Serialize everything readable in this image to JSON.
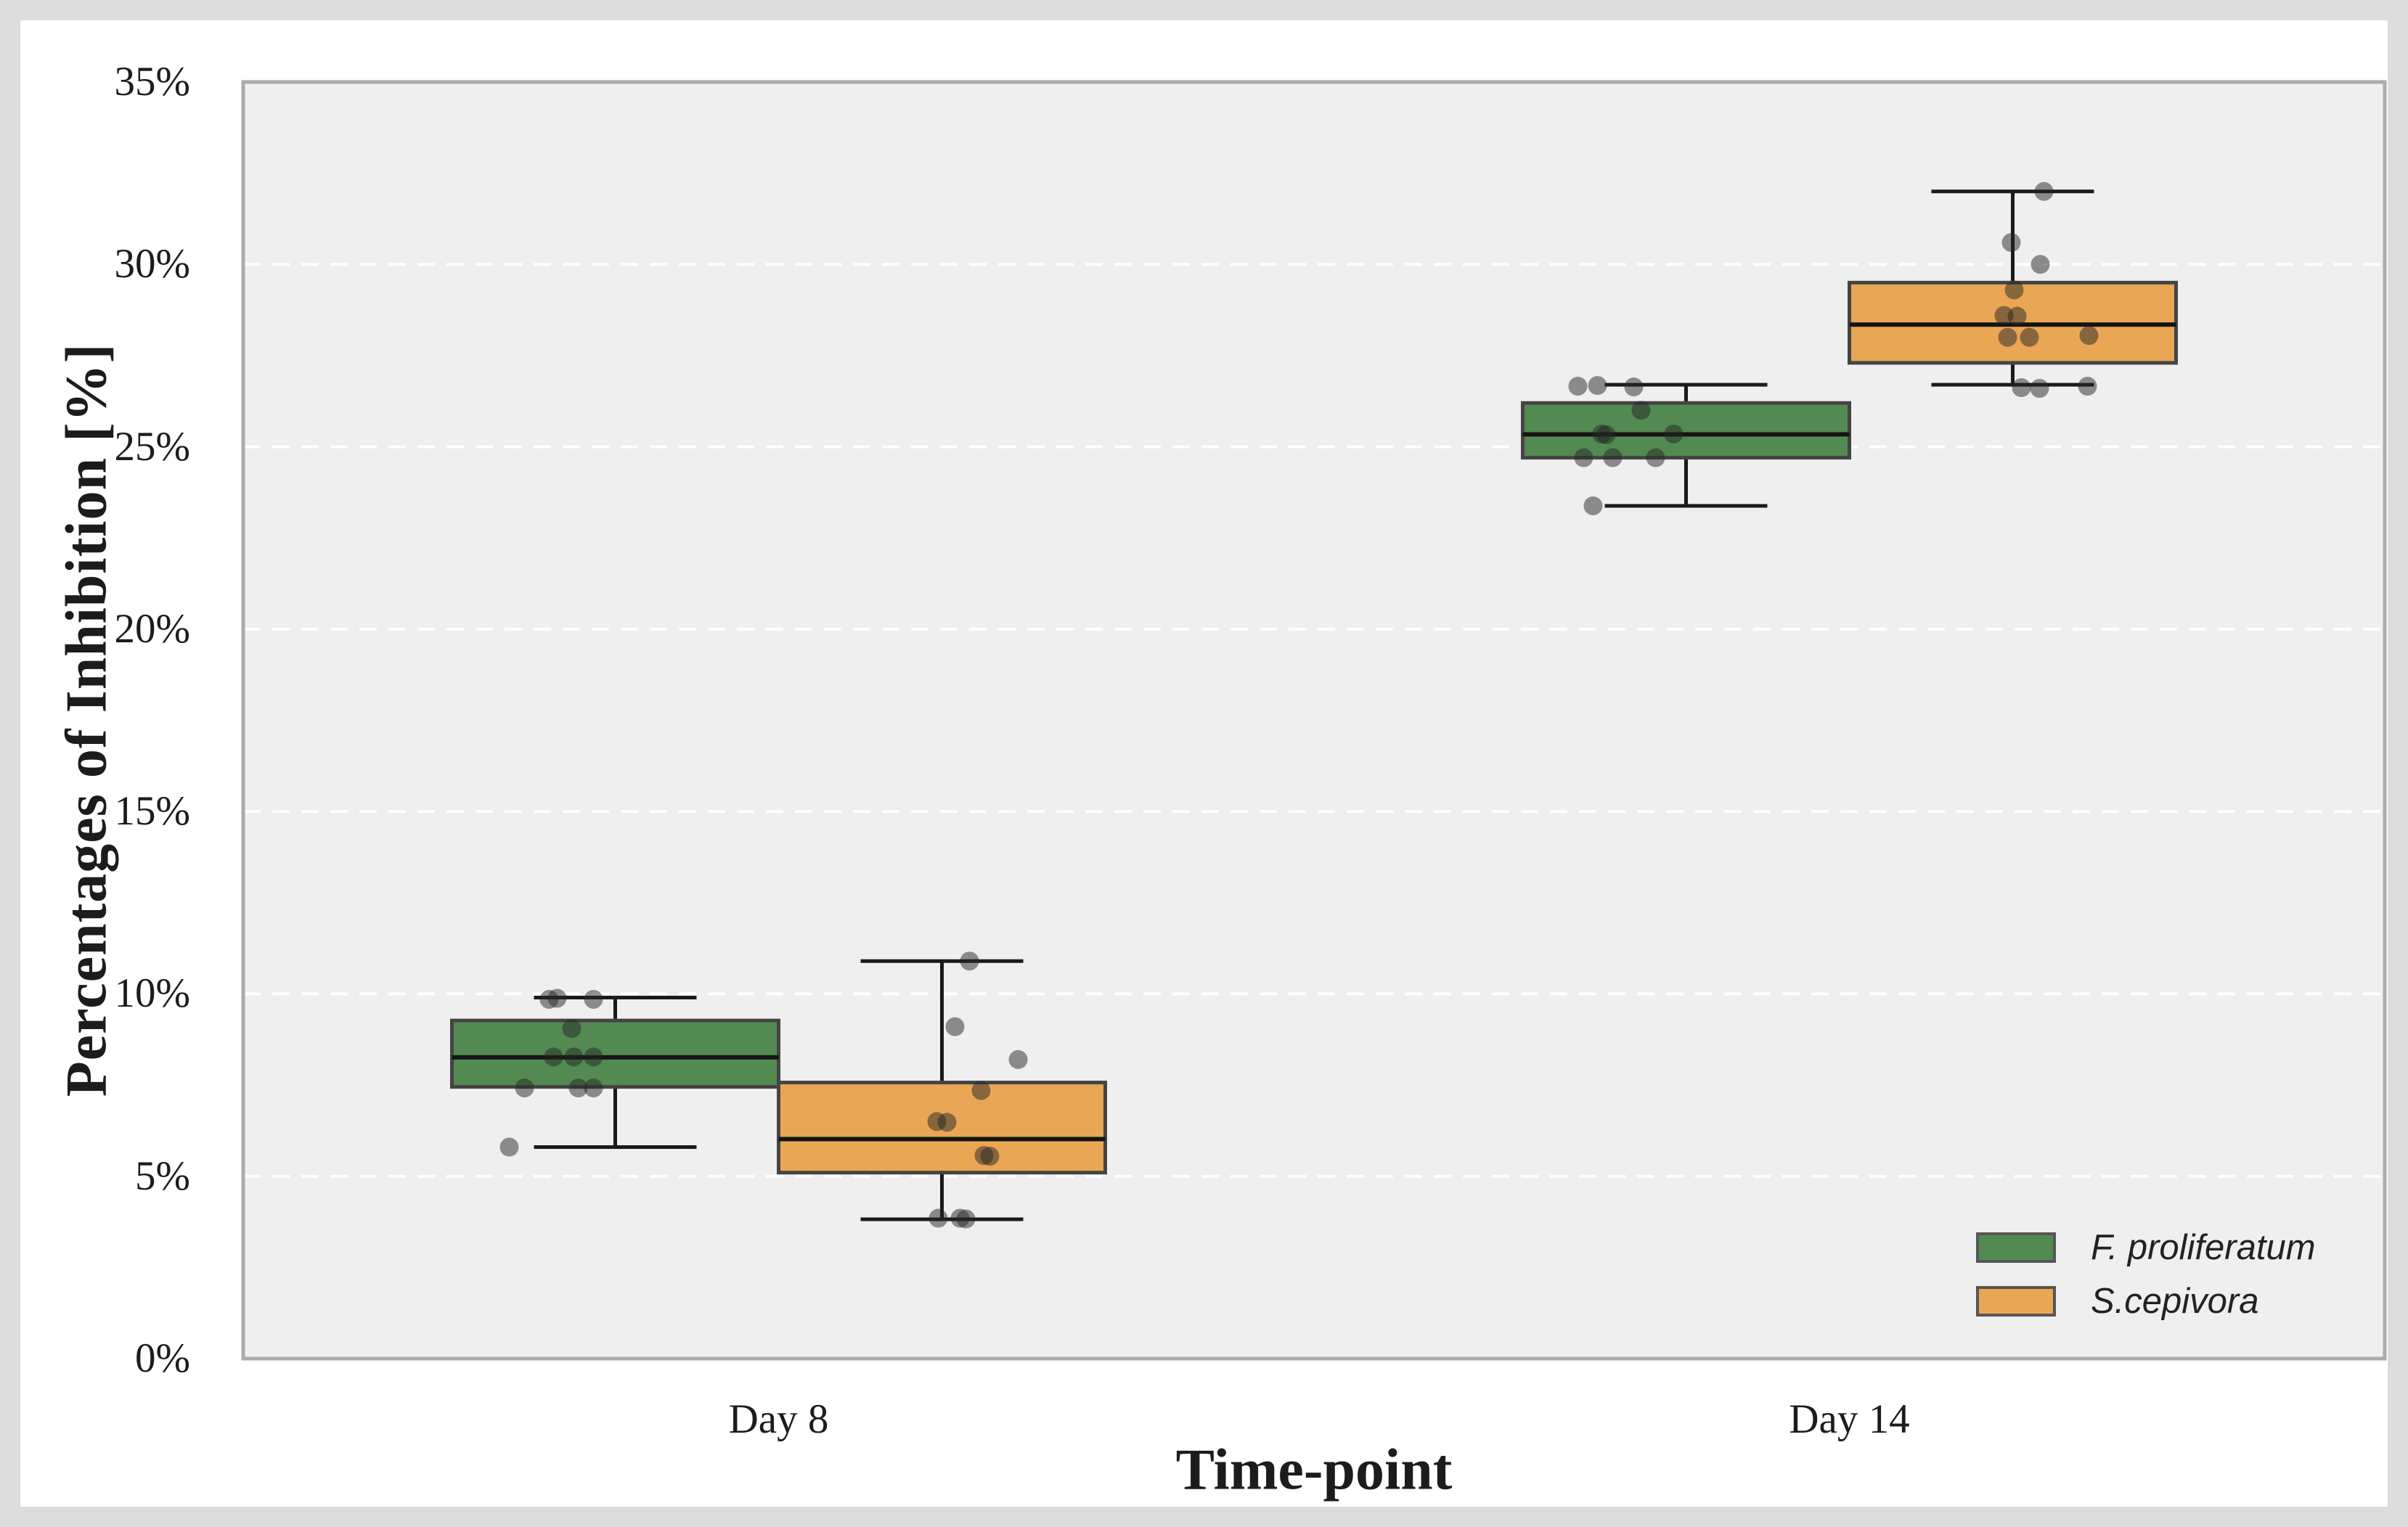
{
  "chart_data": {
    "type": "boxplot",
    "title": "",
    "xlabel": "Time-point",
    "ylabel": "Percentages of Inhibition [%]",
    "categories": [
      "Day 8",
      "Day 14"
    ],
    "y_axis": {
      "min": 0,
      "max": 35,
      "tick_values": [
        0,
        5,
        10,
        15,
        20,
        25,
        30,
        35
      ],
      "tick_labels": [
        "0%",
        "5%",
        "10%",
        "15%",
        "20%",
        "25%",
        "30%",
        "35%"
      ],
      "gridline_values": [
        5,
        10,
        15,
        20,
        25,
        30
      ],
      "grid_style": "white-dashed"
    },
    "legend_position": "lower-right",
    "series": [
      {
        "name": "F. proliferatum",
        "color": "#528a52",
        "boxes": [
          {
            "category": "Day 8",
            "min": 5.8,
            "q1": 7.45,
            "median": 8.26,
            "q3": 9.27,
            "max": 9.9
          },
          {
            "category": "Day 14",
            "min": 23.38,
            "q1": 24.7,
            "median": 25.34,
            "q3": 26.2,
            "max": 26.7
          }
        ],
        "points": [
          {
            "ci": 0,
            "v": 9.85,
            "dx": -91
          },
          {
            "ci": 0,
            "v": 9.88,
            "dx": -80
          },
          {
            "ci": 0,
            "v": 9.85,
            "dx": -30
          },
          {
            "ci": 0,
            "v": 9.05,
            "dx": -60
          },
          {
            "ci": 0,
            "v": 8.27,
            "dx": -85
          },
          {
            "ci": 0,
            "v": 8.27,
            "dx": -57
          },
          {
            "ci": 0,
            "v": 8.27,
            "dx": -30
          },
          {
            "ci": 0,
            "v": 7.42,
            "dx": -125
          },
          {
            "ci": 0,
            "v": 7.42,
            "dx": -51
          },
          {
            "ci": 0,
            "v": 7.42,
            "dx": -30
          },
          {
            "ci": 0,
            "v": 5.8,
            "dx": -146
          },
          {
            "ci": 1,
            "v": 26.66,
            "dx": -149
          },
          {
            "ci": 1,
            "v": 26.68,
            "dx": -122
          },
          {
            "ci": 1,
            "v": 26.64,
            "dx": -72
          },
          {
            "ci": 1,
            "v": 26.0,
            "dx": -62
          },
          {
            "ci": 1,
            "v": 25.35,
            "dx": -116
          },
          {
            "ci": 1,
            "v": 25.33,
            "dx": -110
          },
          {
            "ci": 1,
            "v": 25.35,
            "dx": -17
          },
          {
            "ci": 1,
            "v": 24.7,
            "dx": -141
          },
          {
            "ci": 1,
            "v": 24.7,
            "dx": -101
          },
          {
            "ci": 1,
            "v": 24.7,
            "dx": -42
          },
          {
            "ci": 1,
            "v": 23.38,
            "dx": -128
          }
        ]
      },
      {
        "name": "S.cepivora",
        "color": "#e9a654",
        "boxes": [
          {
            "category": "Day 8",
            "min": 3.82,
            "q1": 5.1,
            "median": 6.02,
            "q3": 7.57,
            "max": 10.9
          },
          {
            "category": "Day 14",
            "min": 26.7,
            "q1": 27.3,
            "median": 28.35,
            "q3": 29.5,
            "max": 32.0
          }
        ],
        "points": [
          {
            "ci": 0,
            "v": 10.9,
            "dx": 38
          },
          {
            "ci": 0,
            "v": 9.1,
            "dx": 18
          },
          {
            "ci": 0,
            "v": 8.2,
            "dx": 105
          },
          {
            "ci": 0,
            "v": 7.35,
            "dx": 54
          },
          {
            "ci": 0,
            "v": 6.5,
            "dx": -7
          },
          {
            "ci": 0,
            "v": 6.48,
            "dx": 7
          },
          {
            "ci": 0,
            "v": 5.57,
            "dx": 58
          },
          {
            "ci": 0,
            "v": 5.55,
            "dx": 66
          },
          {
            "ci": 0,
            "v": 3.85,
            "dx": -5
          },
          {
            "ci": 0,
            "v": 3.85,
            "dx": 25
          },
          {
            "ci": 0,
            "v": 3.83,
            "dx": 33
          },
          {
            "ci": 1,
            "v": 32.0,
            "dx": 43
          },
          {
            "ci": 1,
            "v": 30.6,
            "dx": -2
          },
          {
            "ci": 1,
            "v": 30.0,
            "dx": 38
          },
          {
            "ci": 1,
            "v": 29.3,
            "dx": 2
          },
          {
            "ci": 1,
            "v": 28.6,
            "dx": -12
          },
          {
            "ci": 1,
            "v": 28.58,
            "dx": 6
          },
          {
            "ci": 1,
            "v": 28.0,
            "dx": -7
          },
          {
            "ci": 1,
            "v": 28.0,
            "dx": 23
          },
          {
            "ci": 1,
            "v": 28.05,
            "dx": 105
          },
          {
            "ci": 1,
            "v": 26.62,
            "dx": 12
          },
          {
            "ci": 1,
            "v": 26.6,
            "dx": 37
          },
          {
            "ci": 1,
            "v": 26.66,
            "dx": 103
          }
        ]
      }
    ],
    "colors": {
      "figure_bg": "#ffffff",
      "figure_frame": "#dcdcdc",
      "plot_bg": "#efefef",
      "spine": "#ababab",
      "gridline": "#ffffff",
      "box_edge": "#444444",
      "whisker_line": "#1a1a1a",
      "median_line": "#141414",
      "point": "#262626",
      "text": "#1c1c1c"
    }
  }
}
